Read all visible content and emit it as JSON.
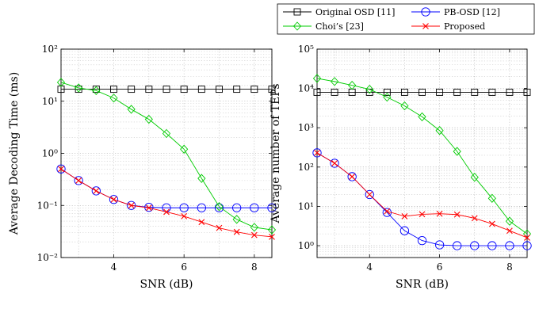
{
  "legend": [
    {
      "name": "Original OSD [11]",
      "color": "#000000",
      "marker": "square"
    },
    {
      "name": "PB-OSD [12]",
      "color": "#0000ff",
      "marker": "circle"
    },
    {
      "name": "Choi’s [23]",
      "color": "#00cc00",
      "marker": "diamond"
    },
    {
      "name": "Proposed",
      "color": "#ff0000",
      "marker": "cross"
    }
  ],
  "chart_data": [
    {
      "type": "line",
      "xlabel": "SNR (dB)",
      "ylabel": "Average Decoding Time (ms)",
      "yscale": "log",
      "xlim": [
        2.5,
        8.5
      ],
      "ylim": [
        0.01,
        100
      ],
      "xticks": [
        4,
        6,
        8
      ],
      "xtick_labels": [
        "4",
        "6",
        "8"
      ],
      "yticks": [
        0.01,
        0.1,
        1,
        10,
        100
      ],
      "ytick_labels": [
        "10⁻²",
        "10⁻¹",
        "10⁰",
        "10¹",
        "10²"
      ],
      "grid": true,
      "x": [
        2.5,
        3,
        3.5,
        4,
        4.5,
        5,
        5.5,
        6,
        6.5,
        7,
        7.5,
        8,
        8.5
      ],
      "series": [
        {
          "name": "Original OSD [11]",
          "values": [
            17,
            17,
            17,
            17,
            17,
            17,
            17,
            17,
            17,
            17,
            17,
            17,
            17
          ]
        },
        {
          "name": "PB-OSD [12]",
          "values": [
            0.5,
            0.3,
            0.19,
            0.13,
            0.1,
            0.092,
            0.09,
            0.09,
            0.09,
            0.09,
            0.09,
            0.09,
            0.09
          ]
        },
        {
          "name": "Choi’s [23]",
          "values": [
            23,
            18,
            16,
            11.5,
            7,
            4.5,
            2.4,
            1.2,
            0.33,
            0.095,
            0.054,
            0.038,
            0.034
          ]
        },
        {
          "name": "Proposed",
          "values": [
            0.5,
            0.3,
            0.19,
            0.13,
            0.1,
            0.09,
            0.075,
            0.062,
            0.048,
            0.037,
            0.031,
            0.027,
            0.025
          ]
        }
      ]
    },
    {
      "type": "line",
      "xlabel": "SNR (dB)",
      "ylabel": "Average number of TEPs",
      "yscale": "log",
      "xlim": [
        2.5,
        8.5
      ],
      "ylim": [
        0.5,
        100000
      ],
      "xticks": [
        4,
        6,
        8
      ],
      "xtick_labels": [
        "4",
        "6",
        "8"
      ],
      "yticks": [
        1,
        10,
        100,
        1000,
        10000,
        100000
      ],
      "ytick_labels": [
        "10⁰",
        "10¹",
        "10²",
        "10³",
        "10⁴",
        "10⁵"
      ],
      "grid": true,
      "x": [
        2.5,
        3,
        3.5,
        4,
        4.5,
        5,
        5.5,
        6,
        6.5,
        7,
        7.5,
        8,
        8.5
      ],
      "series": [
        {
          "name": "Original OSD [11]",
          "values": [
            8000,
            8000,
            8000,
            8000,
            8000,
            8000,
            8000,
            8000,
            8000,
            8000,
            8000,
            8000,
            8000
          ]
        },
        {
          "name": "PB-OSD [12]",
          "values": [
            230,
            125,
            57,
            20,
            7,
            2.4,
            1.35,
            1.05,
            1.0,
            1.0,
            1.0,
            1.0,
            1.0
          ]
        },
        {
          "name": "Choi’s [23]",
          "values": [
            18000,
            15000,
            12000,
            9500,
            6000,
            3600,
            1900,
            850,
            250,
            55,
            16,
            4.2,
            2.0
          ]
        },
        {
          "name": "Proposed",
          "values": [
            230,
            125,
            57,
            20,
            7.5,
            5.6,
            6.3,
            6.5,
            6.2,
            5.0,
            3.6,
            2.4,
            1.6
          ]
        }
      ]
    }
  ]
}
